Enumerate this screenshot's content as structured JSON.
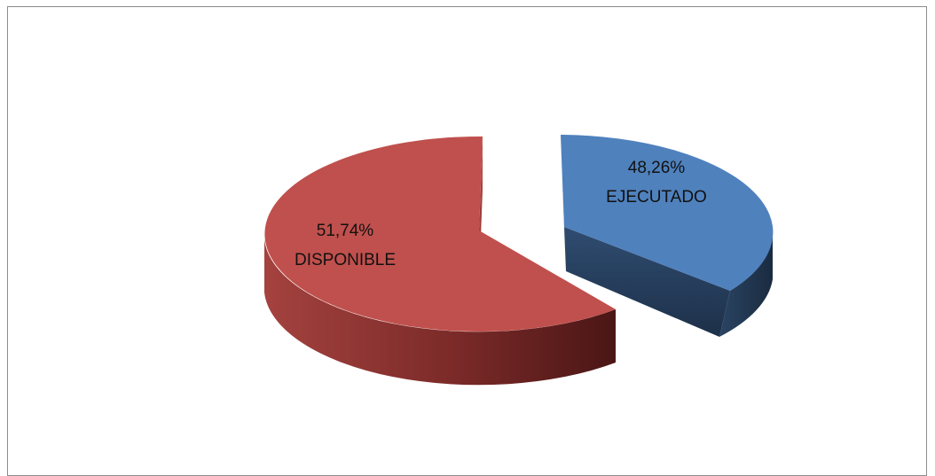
{
  "chart_data": {
    "type": "pie",
    "title": "",
    "categories": [
      "DISPONIBLE",
      "EJECUTADO"
    ],
    "values": [
      51.74,
      48.26
    ],
    "slices": [
      {
        "name": "DISPONIBLE",
        "value": 51.74,
        "percent_label": "51,74%",
        "category_label": "DISPONIBLE",
        "color": "#c0504d",
        "side_color": "#7d2a28",
        "exploded": false
      },
      {
        "name": "EJECUTADO",
        "value": 48.26,
        "percent_label": "48,26%",
        "category_label": "EJECUTADO",
        "color": "#4f81bd",
        "side_color": "#1f3450",
        "exploded": true
      }
    ],
    "legend": "none",
    "style": "3d-exploded"
  }
}
